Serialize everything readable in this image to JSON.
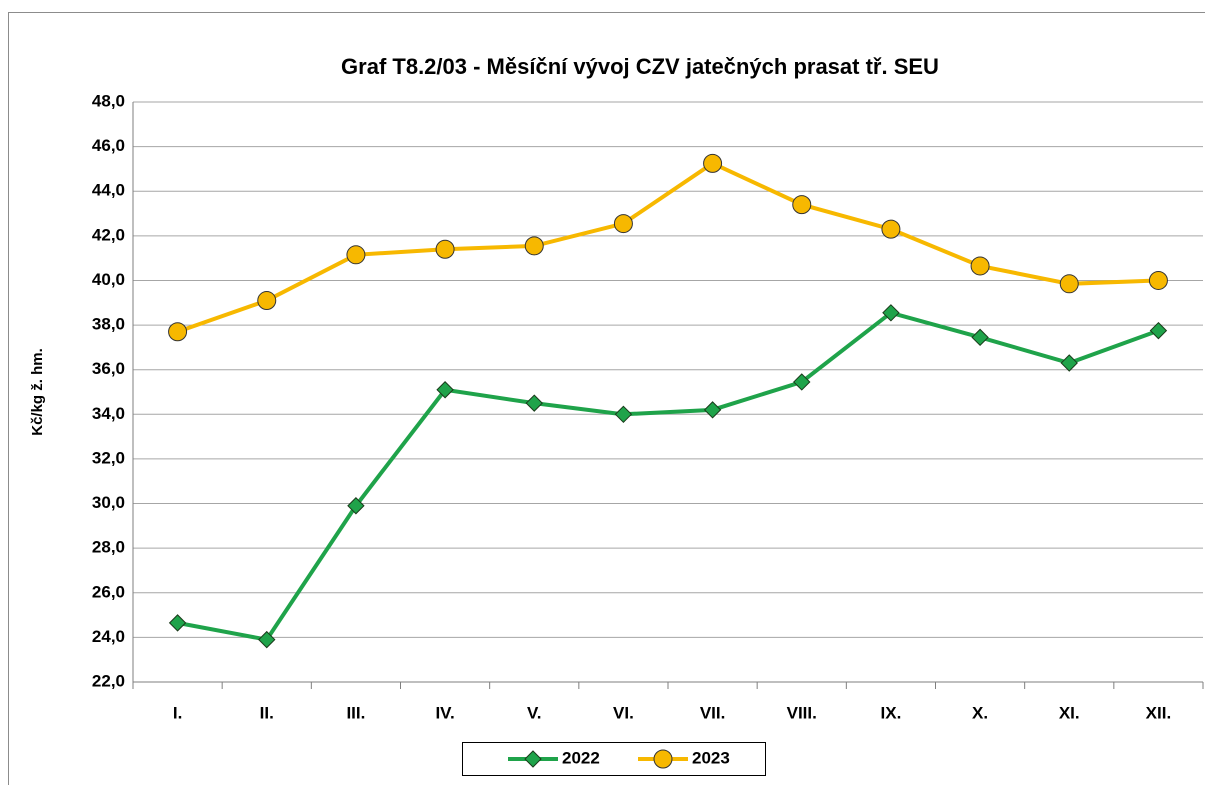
{
  "chart_data": {
    "type": "line",
    "title": "Graf T8.2/03 - Měsíční vývoj CZV jatečných prasat tř. SEU",
    "y_label": "Kč/kg ž. hm.",
    "categories": [
      "I.",
      "II.",
      "III.",
      "IV.",
      "V.",
      "VI.",
      "VII.",
      "VIII.",
      "IX.",
      "X.",
      "XI.",
      "XII."
    ],
    "series": [
      {
        "name": "2022",
        "color": "#1fa34a",
        "marker": "diamond",
        "values": [
          24.65,
          23.9,
          29.9,
          35.1,
          34.5,
          34.0,
          34.2,
          35.45,
          38.55,
          37.45,
          36.3,
          37.75
        ]
      },
      {
        "name": "2023",
        "color": "#f7b800",
        "marker": "circle",
        "values": [
          37.7,
          39.1,
          41.15,
          41.4,
          41.55,
          42.55,
          45.25,
          43.4,
          42.3,
          40.65,
          39.85,
          40.0
        ]
      }
    ],
    "ylim": [
      22,
      48
    ],
    "yticks": [
      {
        "value": 22,
        "label": "22,0"
      },
      {
        "value": 24,
        "label": "24,0"
      },
      {
        "value": 26,
        "label": "26,0"
      },
      {
        "value": 28,
        "label": "28,0"
      },
      {
        "value": 30,
        "label": "30,0"
      },
      {
        "value": 32,
        "label": "32,0"
      },
      {
        "value": 34,
        "label": "34,0"
      },
      {
        "value": 36,
        "label": "36,0"
      },
      {
        "value": 38,
        "label": "38,0"
      },
      {
        "value": 40,
        "label": "40,0"
      },
      {
        "value": 42,
        "label": "42,0"
      },
      {
        "value": 44,
        "label": "44,0"
      },
      {
        "value": 46,
        "label": "46,0"
      },
      {
        "value": 48,
        "label": "48,0"
      }
    ],
    "grid": true,
    "legend": "bottom"
  }
}
